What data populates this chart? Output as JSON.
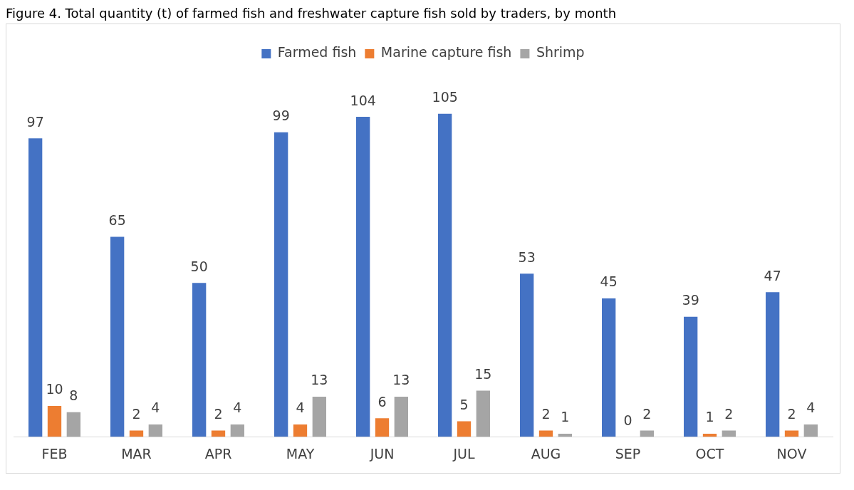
{
  "chart_data": {
    "type": "bar",
    "title": "Figure 4. Total quantity (t) of farmed fish and freshwater capture fish sold by traders, by month",
    "categories": [
      "FEB",
      "MAR",
      "APR",
      "MAY",
      "JUN",
      "JUL",
      "AUG",
      "SEP",
      "OCT",
      "NOV"
    ],
    "series": [
      {
        "name": "Farmed fish",
        "color": "#4472c4",
        "values": [
          97,
          65,
          50,
          99,
          104,
          105,
          53,
          45,
          39,
          47
        ]
      },
      {
        "name": "Marine capture fish",
        "color": "#ed7d31",
        "values": [
          10,
          2,
          2,
          4,
          6,
          5,
          2,
          0,
          1,
          2
        ]
      },
      {
        "name": "Shrimp",
        "color": "#a5a5a5",
        "values": [
          8,
          4,
          4,
          13,
          13,
          15,
          1,
          2,
          2,
          4
        ]
      }
    ],
    "data_labels": true,
    "legend": "top",
    "grid": false
  }
}
